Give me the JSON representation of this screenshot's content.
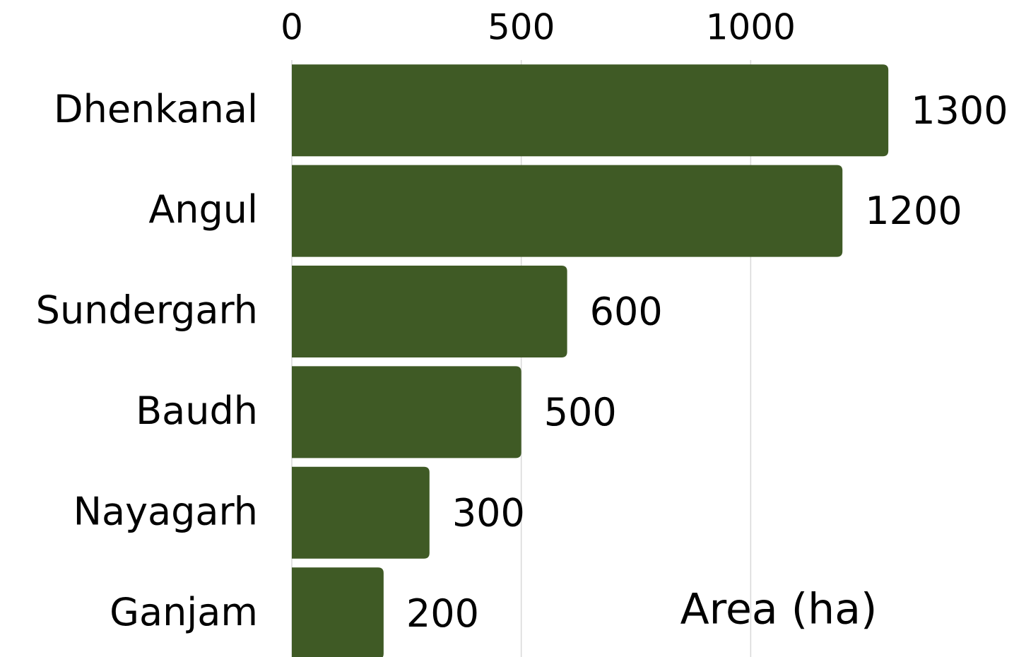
{
  "chart_data": {
    "type": "barh",
    "x_label": "Area (ha)",
    "categories": [
      "Dhenkanal",
      "Angul",
      "Sundergarh",
      "Baudh",
      "Nayagarh",
      "Ganjam"
    ],
    "values": [
      1300,
      1200,
      600,
      500,
      300,
      200
    ],
    "color": "#3f5a25",
    "xlim": [
      0,
      1600
    ],
    "xticks": [
      0,
      500,
      1000
    ],
    "grid": true
  }
}
